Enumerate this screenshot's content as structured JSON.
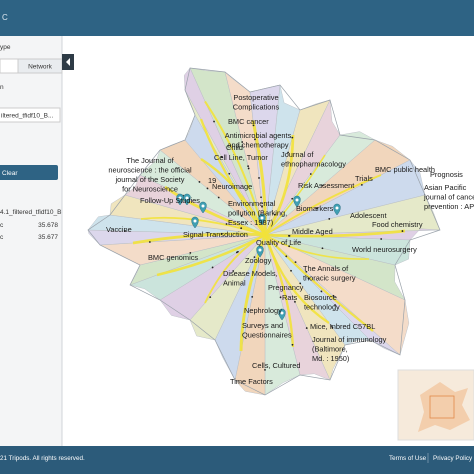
{
  "header": {
    "title": "C"
  },
  "sidebar": {
    "type_label": "ype",
    "tabs": [
      "Network"
    ],
    "source_label": "n",
    "dropdown": "iltered_tfidf10_B...",
    "clear_button": "Clear",
    "result_title": "4.1_filtered_tfidf10_B",
    "results": [
      [
        "c",
        "35.678"
      ],
      [
        "c",
        "35.677"
      ]
    ]
  },
  "map": {
    "labels": [
      [
        "Postoperative",
        "Complications"
      ],
      [
        "BMC cancer"
      ],
      [
        "Antimicrobial agents",
        "and chemotherapy"
      ],
      [
        "Child"
      ],
      [
        "Cell Line, Tumor"
      ],
      [
        "Journal of",
        "ethnopharmacology"
      ],
      [
        "The Journal of",
        "neuroscience : the official",
        "journal of the Society",
        "for Neuroscience"
      ],
      [
        "Neuroimage"
      ],
      [
        "Risk Assessment"
      ],
      [
        "Trials"
      ],
      [
        "BMC public health"
      ],
      [
        "Prognosis"
      ],
      [
        "Asian Pacific",
        "journal of cancer",
        "prevention : APJCP"
      ],
      [
        "Follow-Up Studies"
      ],
      [
        "19"
      ],
      [
        "Environmental",
        "pollution (Barking,",
        "Essex : 1987)"
      ],
      [
        "Biomarkers"
      ],
      [
        "Adolescent"
      ],
      [
        "Food chemistry"
      ],
      [
        "Vaccine"
      ],
      [
        "Signal Transduction"
      ],
      [
        "Middle Aged"
      ],
      [
        "Quality of Life"
      ],
      [
        "World neurosurgery"
      ],
      [
        "BMC genomics"
      ],
      [
        "Zoology"
      ],
      [
        "Disease Models,",
        "Animal"
      ],
      [
        "The Annals of",
        "thoracic surgery"
      ],
      [
        "Pregnancy"
      ],
      [
        "Rats"
      ],
      [
        "Biosource",
        "technology"
      ],
      [
        "Nephrology"
      ],
      [
        "Mice, Inbred C57BL"
      ],
      [
        "Surveys and",
        "Questionnaires"
      ],
      [
        "Journal of immunology",
        "(Baltimore,",
        "Md. : 1950)"
      ],
      [
        "Cells, Cultured"
      ],
      [
        "Time Factors"
      ]
    ]
  },
  "footer": {
    "copyright": "21 Tripods. All rights reserved.",
    "links": [
      "Terms of Use",
      "Privacy Policy"
    ]
  }
}
